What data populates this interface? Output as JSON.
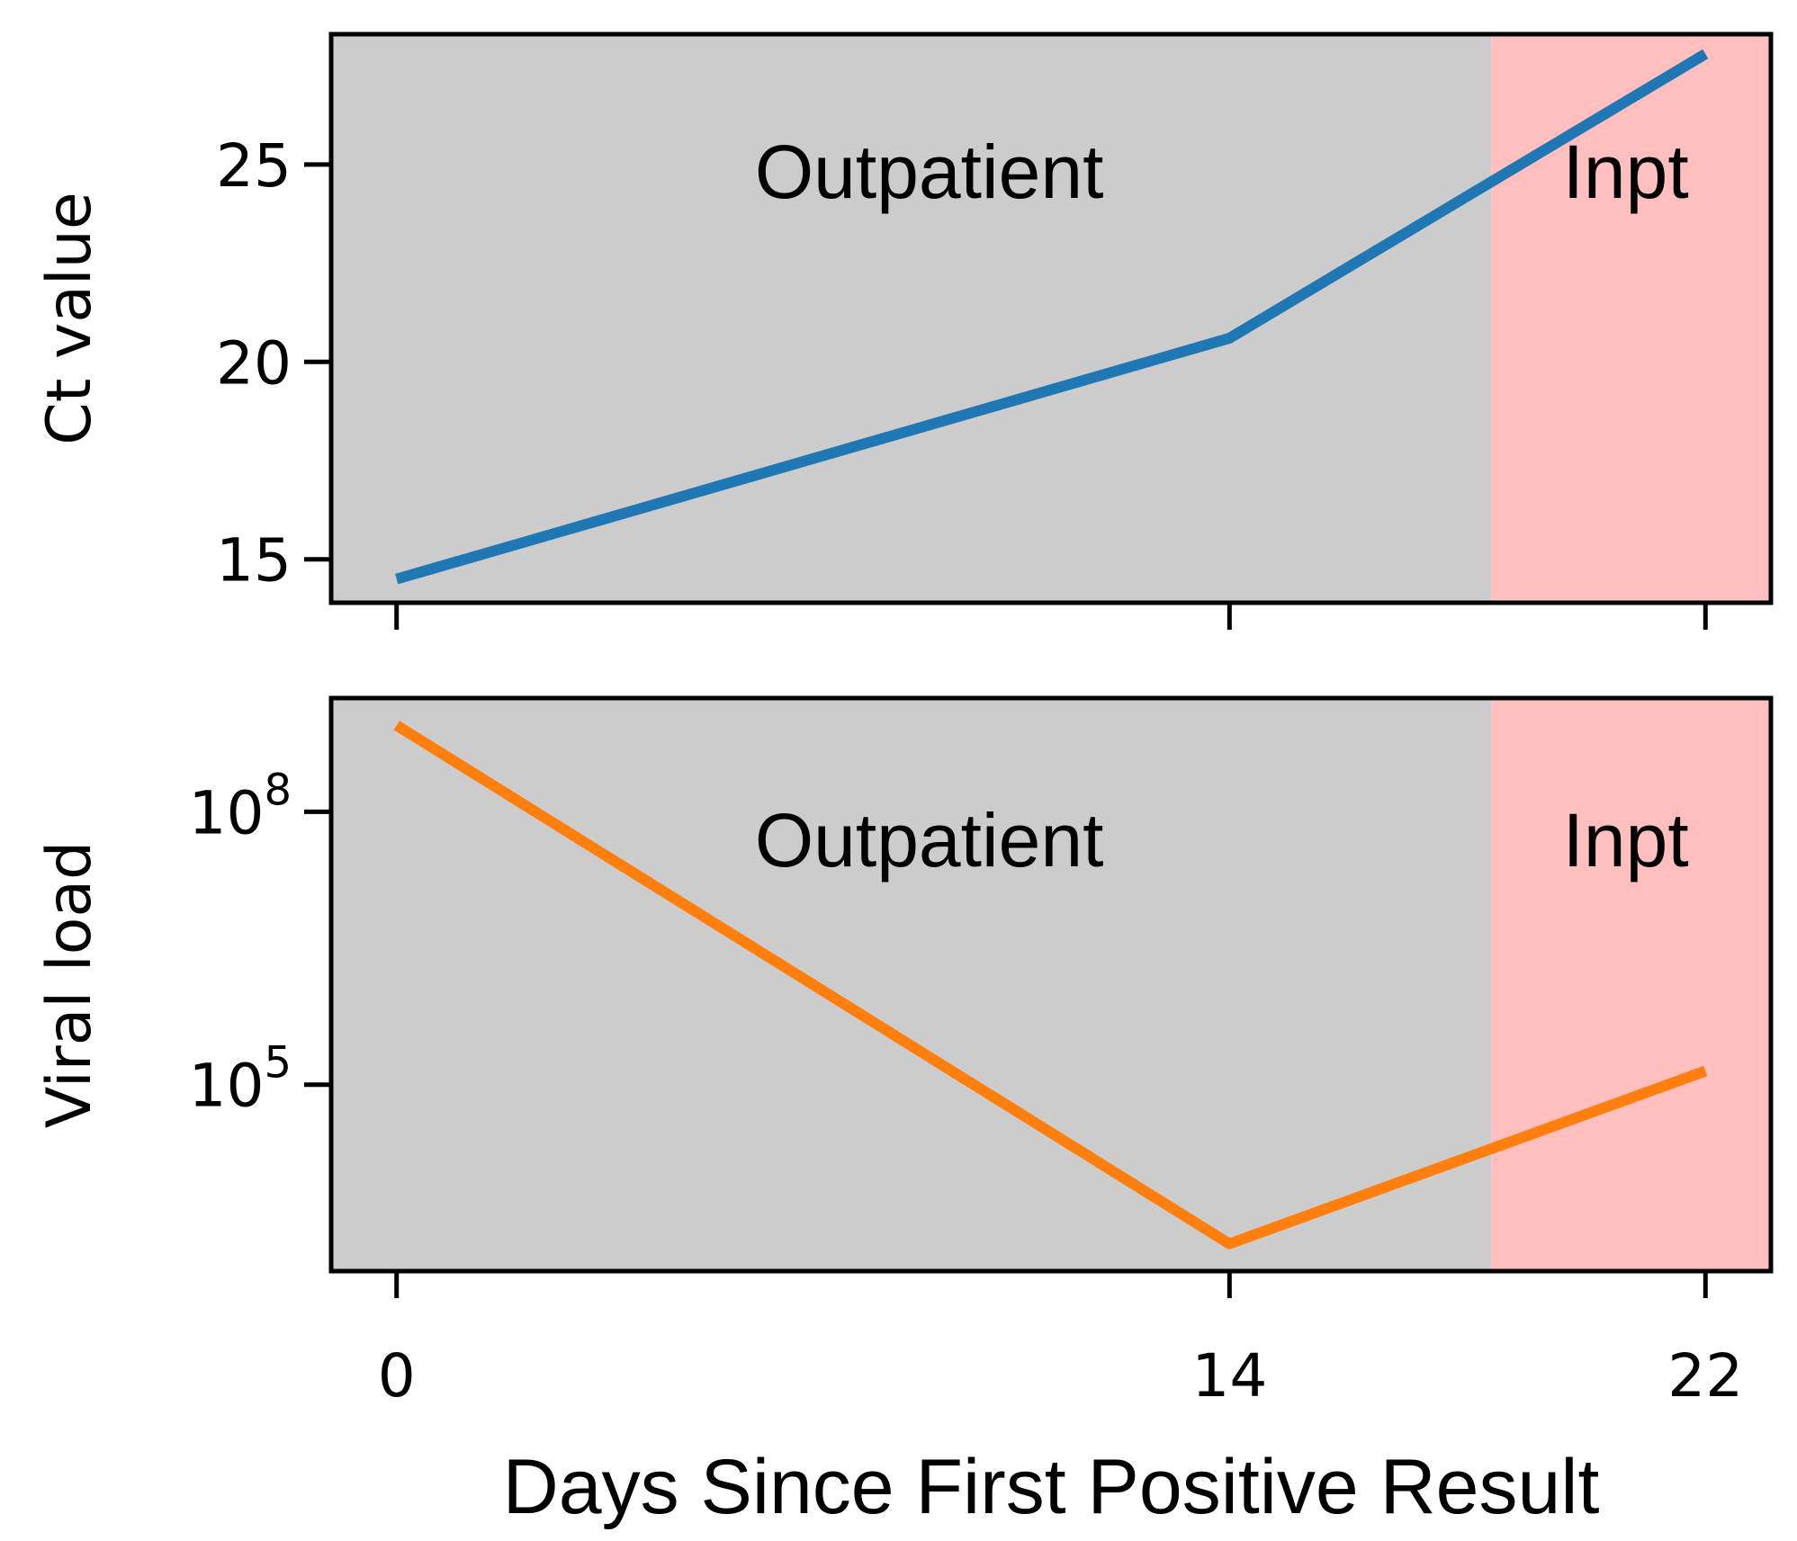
{
  "chart_data": [
    {
      "type": "line",
      "panel": "top",
      "ylabel": "Ct value",
      "x": [
        0,
        14,
        22
      ],
      "values": [
        14.5,
        20.6,
        27.8
      ],
      "ylim": [
        13.9,
        28.3
      ],
      "yticks": [
        15,
        20,
        25
      ],
      "ytick_labels": [
        "15",
        "20",
        "25"
      ],
      "color": "#1f77b4",
      "regions": [
        {
          "label": "Outpatient",
          "x_start": -1.1,
          "x_end": 18.4,
          "color": "#cccccc"
        },
        {
          "label": "Inpt",
          "x_start": 18.4,
          "x_end": 23.1,
          "color": "#ffbfbf"
        }
      ]
    },
    {
      "type": "line",
      "panel": "bottom",
      "scale": "log",
      "ylabel": "Viral load",
      "x": [
        0,
        14,
        22
      ],
      "log10_values": [
        8.95,
        3.25,
        5.15
      ],
      "ylim_log10": [
        2.95,
        9.25
      ],
      "ytick_exponents": [
        5,
        8
      ],
      "ytick_base": "10",
      "ytick_exps": [
        "5",
        "8"
      ],
      "color": "#ff7f0e",
      "regions": [
        {
          "label": "Outpatient",
          "x_start": -1.1,
          "x_end": 18.4,
          "color": "#cccccc"
        },
        {
          "label": "Inpt",
          "x_start": 18.4,
          "x_end": 23.1,
          "color": "#ffbfbf"
        }
      ]
    }
  ],
  "x_axis": {
    "xlim": [
      -1.1,
      23.1
    ],
    "ticks": [
      0,
      14,
      22
    ],
    "tick_labels": [
      "0",
      "14",
      "22"
    ],
    "label": "Days Since First Positive Result"
  }
}
